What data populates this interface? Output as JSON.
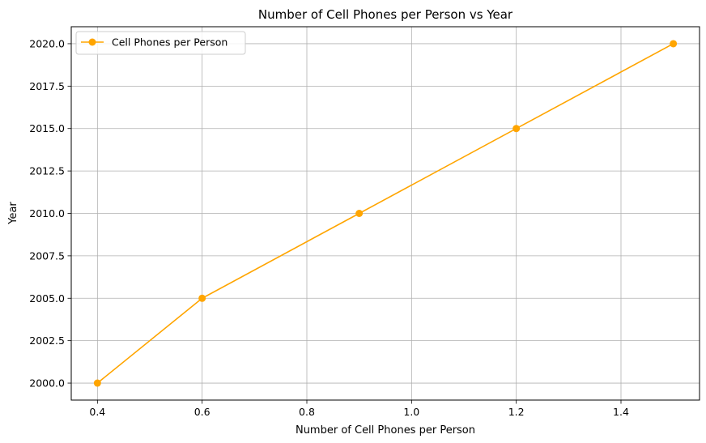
{
  "chart_data": {
    "type": "line",
    "title": "Number of Cell Phones per Person vs Year",
    "xlabel": "Number of Cell Phones per Person",
    "ylabel": "Year",
    "xlim": [
      0.35,
      1.55
    ],
    "ylim": [
      1999.0,
      2021.0
    ],
    "x_ticks": [
      0.4,
      0.6,
      0.8,
      1.0,
      1.2,
      1.4
    ],
    "x_tick_labels": [
      "0.4",
      "0.6",
      "0.8",
      "1.0",
      "1.2",
      "1.4"
    ],
    "y_ticks": [
      2000.0,
      2002.5,
      2005.0,
      2007.5,
      2010.0,
      2012.5,
      2015.0,
      2017.5,
      2020.0
    ],
    "y_tick_labels": [
      "2000.0",
      "2002.5",
      "2005.0",
      "2007.5",
      "2010.0",
      "2012.5",
      "2015.0",
      "2017.5",
      "2020.0"
    ],
    "grid": true,
    "legend_position": "top-left",
    "series": [
      {
        "name": "Cell Phones per Person",
        "color": "#FFA500",
        "marker": "circle",
        "x": [
          0.4,
          0.6,
          0.9,
          1.2,
          1.5
        ],
        "y": [
          2000,
          2005,
          2010,
          2015,
          2020
        ]
      }
    ]
  }
}
